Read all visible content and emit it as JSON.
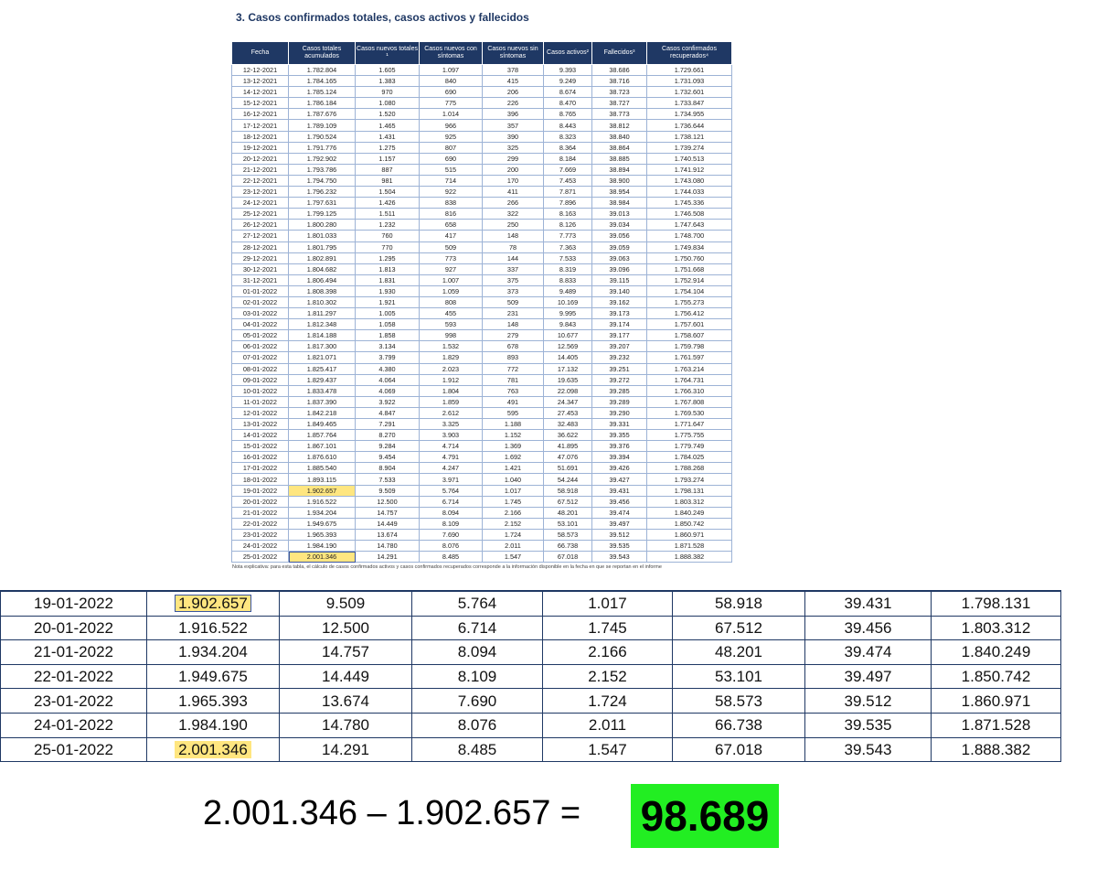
{
  "title": "3. Casos confirmados totales, casos activos y fallecidos",
  "table": {
    "headers": [
      "Fecha",
      "Casos totales acumulados",
      "Casos nuevos totales ¹",
      "Casos nuevos con síntomas",
      "Casos nuevos sin síntomas",
      "Casos activos²",
      "Fallecidos³",
      "Casos confirmados recuperados⁴"
    ],
    "rows": [
      [
        "12-12-2021",
        "1.782.804",
        "1.605",
        "1.097",
        "378",
        "9.393",
        "38.686",
        "1.729.661"
      ],
      [
        "13-12-2021",
        "1.784.165",
        "1.383",
        "840",
        "415",
        "9.249",
        "38.716",
        "1.731.093"
      ],
      [
        "14-12-2021",
        "1.785.124",
        "970",
        "690",
        "206",
        "8.674",
        "38.723",
        "1.732.601"
      ],
      [
        "15-12-2021",
        "1.786.184",
        "1.080",
        "775",
        "226",
        "8.470",
        "38.727",
        "1.733.847"
      ],
      [
        "16-12-2021",
        "1.787.676",
        "1.520",
        "1.014",
        "396",
        "8.765",
        "38.773",
        "1.734.955"
      ],
      [
        "17-12-2021",
        "1.789.109",
        "1.465",
        "966",
        "357",
        "8.443",
        "38.812",
        "1.736.644"
      ],
      [
        "18-12-2021",
        "1.790.524",
        "1.431",
        "925",
        "390",
        "8.323",
        "38.840",
        "1.738.121"
      ],
      [
        "19-12-2021",
        "1.791.776",
        "1.275",
        "807",
        "325",
        "8.364",
        "38.864",
        "1.739.274"
      ],
      [
        "20-12-2021",
        "1.792.902",
        "1.157",
        "690",
        "299",
        "8.184",
        "38.885",
        "1.740.513"
      ],
      [
        "21-12-2021",
        "1.793.786",
        "887",
        "515",
        "200",
        "7.669",
        "38.894",
        "1.741.912"
      ],
      [
        "22-12-2021",
        "1.794.750",
        "981",
        "714",
        "170",
        "7.453",
        "38.900",
        "1.743.080"
      ],
      [
        "23-12-2021",
        "1.796.232",
        "1.504",
        "922",
        "411",
        "7.871",
        "38.954",
        "1.744.033"
      ],
      [
        "24-12-2021",
        "1.797.631",
        "1.426",
        "838",
        "266",
        "7.896",
        "38.984",
        "1.745.336"
      ],
      [
        "25-12-2021",
        "1.799.125",
        "1.511",
        "816",
        "322",
        "8.163",
        "39.013",
        "1.746.508"
      ],
      [
        "26-12-2021",
        "1.800.280",
        "1.232",
        "658",
        "250",
        "8.126",
        "39.034",
        "1.747.643"
      ],
      [
        "27-12-2021",
        "1.801.033",
        "760",
        "417",
        "148",
        "7.773",
        "39.056",
        "1.748.700"
      ],
      [
        "28-12-2021",
        "1.801.795",
        "770",
        "509",
        "78",
        "7.363",
        "39.059",
        "1.749.834"
      ],
      [
        "29-12-2021",
        "1.802.891",
        "1.295",
        "773",
        "144",
        "7.533",
        "39.063",
        "1.750.760"
      ],
      [
        "30-12-2021",
        "1.804.682",
        "1.813",
        "927",
        "337",
        "8.319",
        "39.096",
        "1.751.668"
      ],
      [
        "31-12-2021",
        "1.806.494",
        "1.831",
        "1.007",
        "375",
        "8.833",
        "39.115",
        "1.752.914"
      ],
      [
        "01-01-2022",
        "1.808.398",
        "1.930",
        "1.059",
        "373",
        "9.489",
        "39.140",
        "1.754.104"
      ],
      [
        "02-01-2022",
        "1.810.302",
        "1.921",
        "808",
        "509",
        "10.169",
        "39.162",
        "1.755.273"
      ],
      [
        "03-01-2022",
        "1.811.297",
        "1.005",
        "455",
        "231",
        "9.995",
        "39.173",
        "1.756.412"
      ],
      [
        "04-01-2022",
        "1.812.348",
        "1.058",
        "593",
        "148",
        "9.843",
        "39.174",
        "1.757.601"
      ],
      [
        "05-01-2022",
        "1.814.188",
        "1.858",
        "998",
        "279",
        "10.677",
        "39.177",
        "1.758.607"
      ],
      [
        "06-01-2022",
        "1.817.300",
        "3.134",
        "1.532",
        "678",
        "12.569",
        "39.207",
        "1.759.798"
      ],
      [
        "07-01-2022",
        "1.821.071",
        "3.799",
        "1.829",
        "893",
        "14.405",
        "39.232",
        "1.761.597"
      ],
      [
        "08-01-2022",
        "1.825.417",
        "4.380",
        "2.023",
        "772",
        "17.132",
        "39.251",
        "1.763.214"
      ],
      [
        "09-01-2022",
        "1.829.437",
        "4.064",
        "1.912",
        "781",
        "19.635",
        "39.272",
        "1.764.731"
      ],
      [
        "10-01-2022",
        "1.833.478",
        "4.069",
        "1.804",
        "763",
        "22.098",
        "39.285",
        "1.766.310"
      ],
      [
        "11-01-2022",
        "1.837.390",
        "3.922",
        "1.859",
        "491",
        "24.347",
        "39.289",
        "1.767.808"
      ],
      [
        "12-01-2022",
        "1.842.218",
        "4.847",
        "2.612",
        "595",
        "27.453",
        "39.290",
        "1.769.530"
      ],
      [
        "13-01-2022",
        "1.849.465",
        "7.291",
        "3.325",
        "1.188",
        "32.483",
        "39.331",
        "1.771.647"
      ],
      [
        "14-01-2022",
        "1.857.764",
        "8.270",
        "3.903",
        "1.152",
        "36.622",
        "39.355",
        "1.775.755"
      ],
      [
        "15-01-2022",
        "1.867.101",
        "9.284",
        "4.714",
        "1.369",
        "41.895",
        "39.376",
        "1.779.749"
      ],
      [
        "16-01-2022",
        "1.876.610",
        "9.454",
        "4.791",
        "1.692",
        "47.076",
        "39.394",
        "1.784.025"
      ],
      [
        "17-01-2022",
        "1.885.540",
        "8.904",
        "4.247",
        "1.421",
        "51.691",
        "39.426",
        "1.788.268"
      ],
      [
        "18-01-2022",
        "1.893.115",
        "7.533",
        "3.971",
        "1.040",
        "54.244",
        "39.427",
        "1.793.274"
      ],
      [
        "19-01-2022",
        "1.902.657",
        "9.509",
        "5.764",
        "1.017",
        "58.918",
        "39.431",
        "1.798.131"
      ],
      [
        "20-01-2022",
        "1.916.522",
        "12.500",
        "6.714",
        "1.745",
        "67.512",
        "39.456",
        "1.803.312"
      ],
      [
        "21-01-2022",
        "1.934.204",
        "14.757",
        "8.094",
        "2.166",
        "48.201",
        "39.474",
        "1.840.249"
      ],
      [
        "22-01-2022",
        "1.949.675",
        "14.449",
        "8.109",
        "2.152",
        "53.101",
        "39.497",
        "1.850.742"
      ],
      [
        "23-01-2022",
        "1.965.393",
        "13.674",
        "7.690",
        "1.724",
        "58.573",
        "39.512",
        "1.860.971"
      ],
      [
        "24-01-2022",
        "1.984.190",
        "14.780",
        "8.076",
        "2.011",
        "66.738",
        "39.535",
        "1.871.528"
      ],
      [
        "25-01-2022",
        "2.001.346",
        "14.291",
        "8.485",
        "1.547",
        "67.018",
        "39.543",
        "1.888.382"
      ]
    ],
    "note": "Nota explicativa: para esta tabla, el cálculo de casos confirmados activos y casos confirmados recuperados corresponde a la información disponible en la fecha en que se reportan en el informe"
  },
  "equation": {
    "expression": "2.001.346 – 1.902.657 =",
    "result": "98.689"
  }
}
